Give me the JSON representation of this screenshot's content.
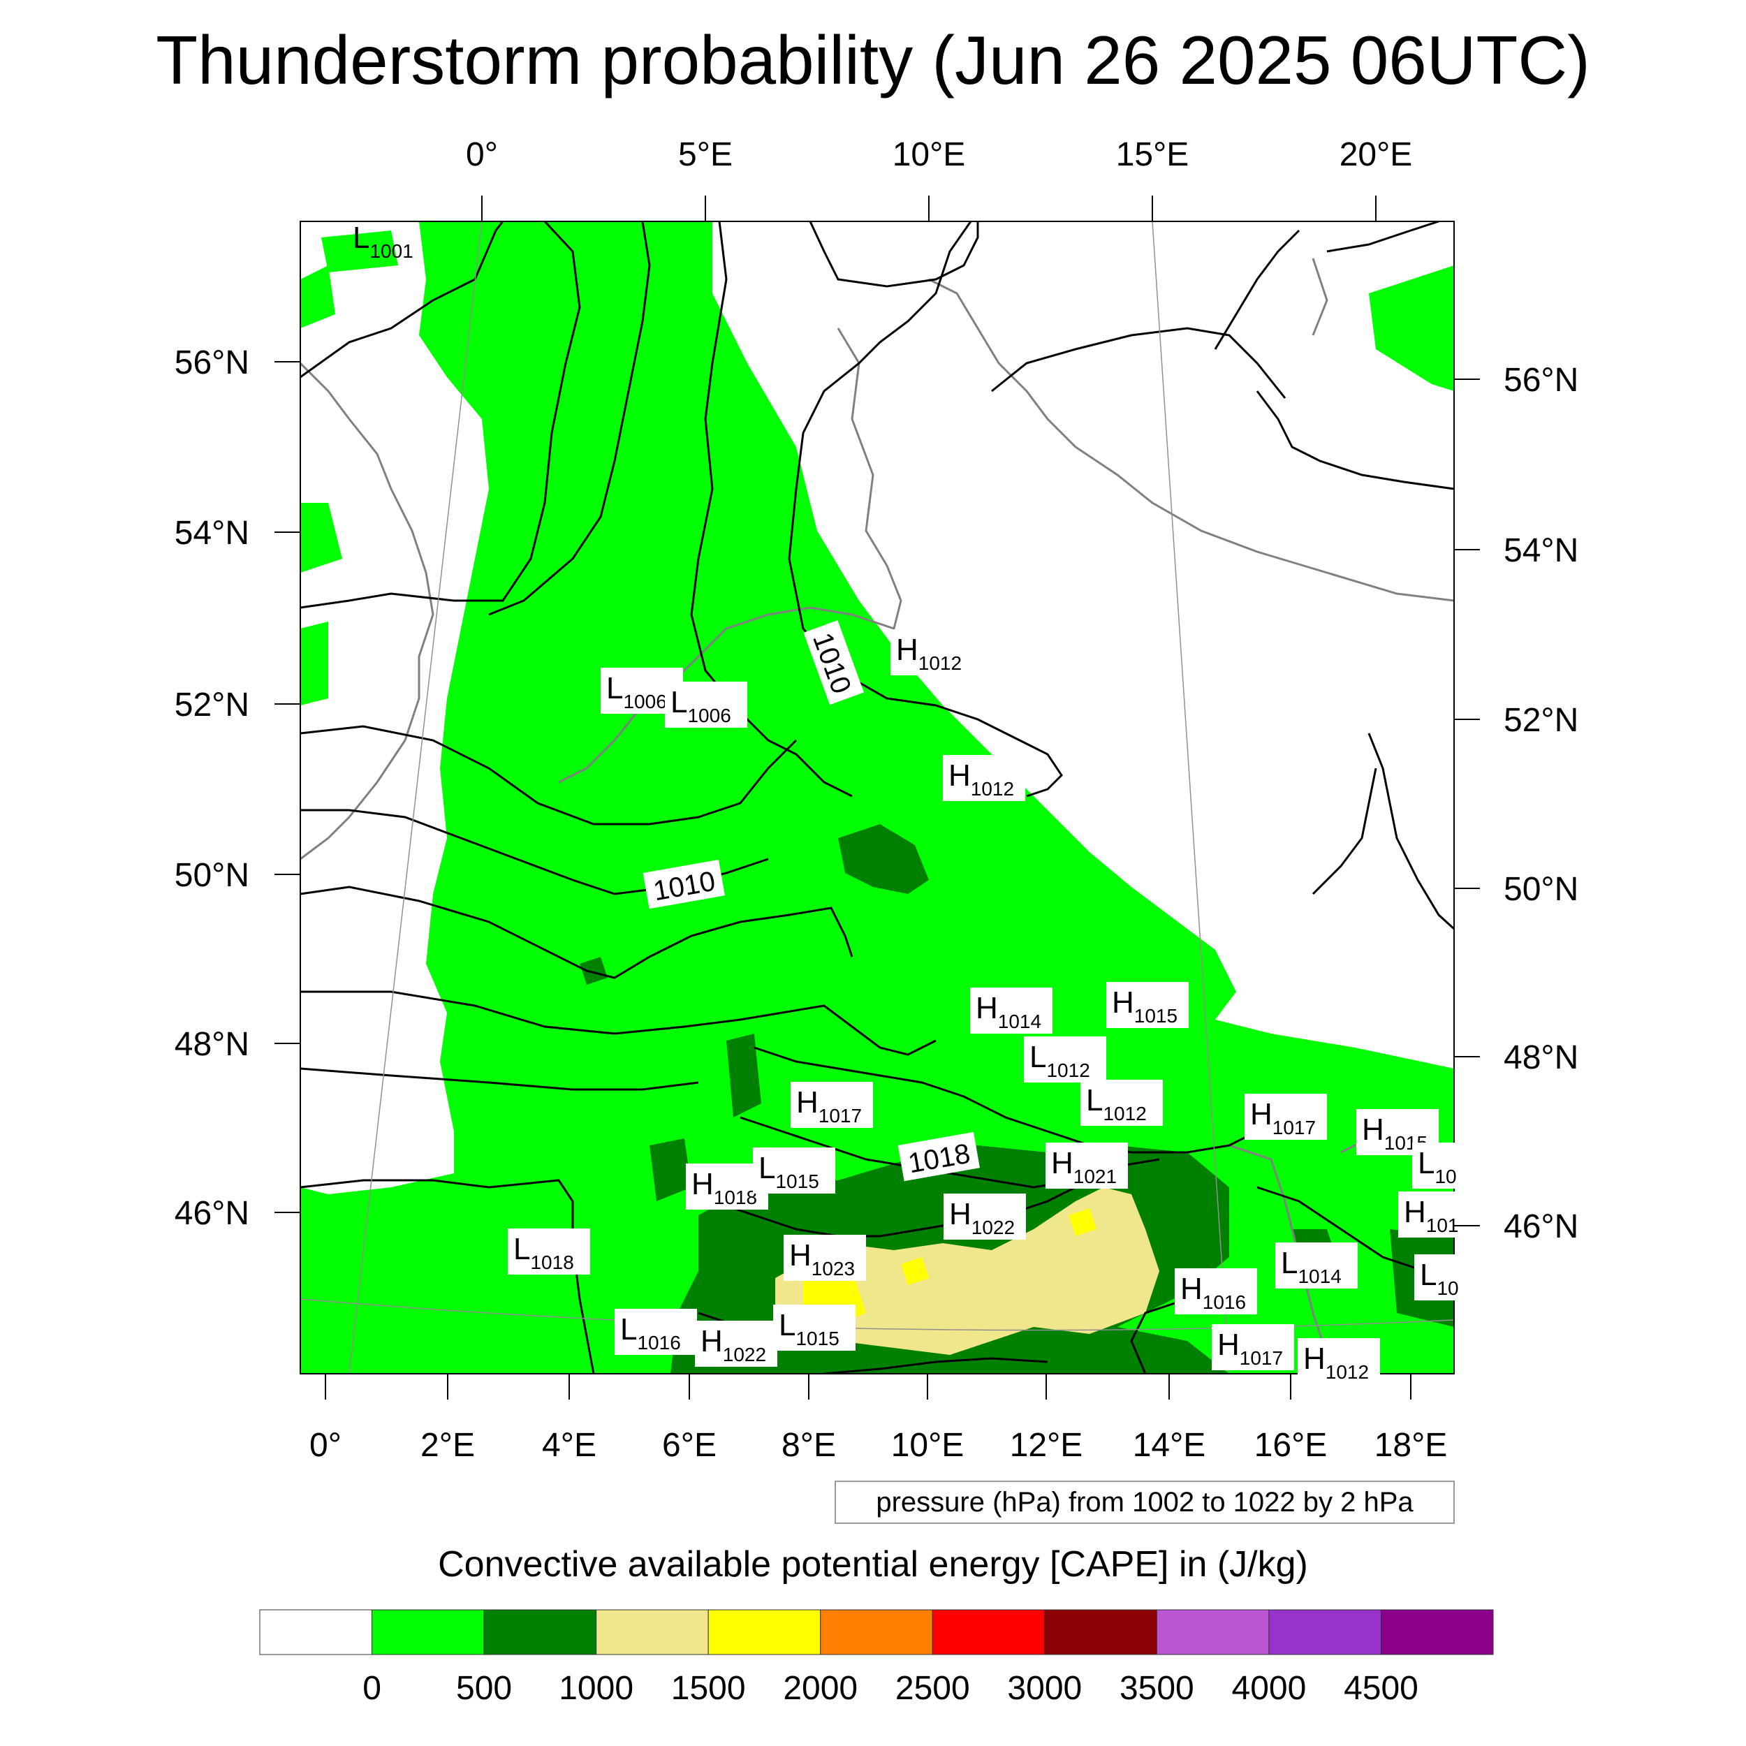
{
  "title": "Thunderstorm probability (Jun 26 2025 06UTC)",
  "map": {
    "top_lon_ticks": [
      "0°",
      "5°E",
      "10°E",
      "15°E",
      "20°E"
    ],
    "bottom_lon_ticks": [
      "0°",
      "2°E",
      "4°E",
      "6°E",
      "8°E",
      "10°E",
      "12°E",
      "14°E",
      "16°E",
      "18°E"
    ],
    "left_lat_ticks": [
      "56°N",
      "54°N",
      "52°N",
      "50°N",
      "48°N",
      "46°N"
    ],
    "right_lat_ticks": [
      "56°N",
      "54°N",
      "52°N",
      "50°N",
      "48°N",
      "46°N"
    ],
    "contour_labels": [
      "1010",
      "1010",
      "1018"
    ],
    "pressure_centers": [
      {
        "type": "L",
        "value": "1001"
      },
      {
        "type": "L",
        "value": "1006"
      },
      {
        "type": "L",
        "value": "1006"
      },
      {
        "type": "H",
        "value": "1012"
      },
      {
        "type": "H",
        "value": "1012"
      },
      {
        "type": "H",
        "value": "1014"
      },
      {
        "type": "H",
        "value": "1015"
      },
      {
        "type": "L",
        "value": "1012"
      },
      {
        "type": "L",
        "value": "1012"
      },
      {
        "type": "H",
        "value": "1017"
      },
      {
        "type": "H",
        "value": "1017"
      },
      {
        "type": "H",
        "value": "1015"
      },
      {
        "type": "L",
        "value": "10"
      },
      {
        "type": "H",
        "value": "1018"
      },
      {
        "type": "L",
        "value": "1015"
      },
      {
        "type": "H",
        "value": "1021"
      },
      {
        "type": "H",
        "value": "1022"
      },
      {
        "type": "H",
        "value": "101"
      },
      {
        "type": "L",
        "value": "1018"
      },
      {
        "type": "H",
        "value": "1023"
      },
      {
        "type": "L",
        "value": "1014"
      },
      {
        "type": "L",
        "value": "10"
      },
      {
        "type": "H",
        "value": "1016"
      },
      {
        "type": "L",
        "value": "1016"
      },
      {
        "type": "H",
        "value": "1022"
      },
      {
        "type": "L",
        "value": "1015"
      },
      {
        "type": "H",
        "value": "1017"
      },
      {
        "type": "H",
        "value": "1012"
      }
    ]
  },
  "info_box": "pressure (hPa) from 1002 to 1022 by 2 hPa",
  "colorbar": {
    "title": "Convective available potential energy [CAPE] in (J/kg)",
    "colors": [
      "#ffffff",
      "#00ff00",
      "#008000",
      "#f0e68c",
      "#ffff00",
      "#ff8000",
      "#ff0000",
      "#8b0000",
      "#ba55d3",
      "#9932cc",
      "#8b008b"
    ],
    "labels": [
      "0",
      "500",
      "1000",
      "1500",
      "2000",
      "2500",
      "3000",
      "3500",
      "4000",
      "4500"
    ]
  }
}
